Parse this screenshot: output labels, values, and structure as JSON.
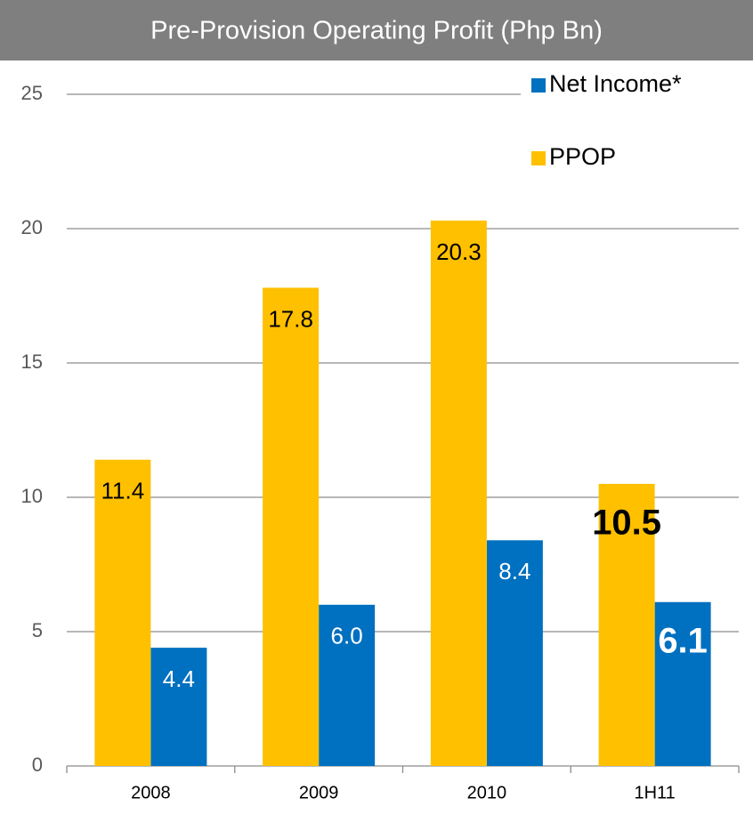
{
  "chart_data": {
    "type": "bar",
    "title": "Pre-Provision Operating Profit  (Php Bn)",
    "categories": [
      "2008",
      "2009",
      "2010",
      "1H11"
    ],
    "series": [
      {
        "name": "Net Income*",
        "color": "#0070C0",
        "values": [
          4.4,
          6.0,
          8.4,
          6.1
        ],
        "value_labels": [
          "4.4",
          "6.0",
          "8.4",
          "6.1"
        ]
      },
      {
        "name": "PPOP",
        "color": "#FFC000",
        "values": [
          11.4,
          17.8,
          20.3,
          10.5
        ]
      }
    ],
    "ylim": [
      0,
      25
    ],
    "yticks": [
      0,
      5,
      10,
      15,
      20,
      25
    ],
    "grid": true,
    "legend": "top-right"
  }
}
